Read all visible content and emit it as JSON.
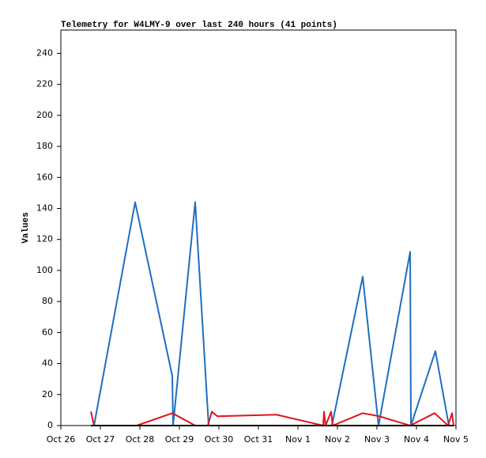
{
  "chart_data": {
    "type": "line",
    "title": "Telemetry for W4LMY-9 over last 240 hours (41 points)",
    "y_label": "Values",
    "xlim": [
      0,
      10
    ],
    "xticks": [
      {
        "value": 0,
        "label": "Oct 26"
      },
      {
        "value": 1,
        "label": "Oct 27"
      },
      {
        "value": 2,
        "label": "Oct 28"
      },
      {
        "value": 3,
        "label": "Oct 29"
      },
      {
        "value": 4,
        "label": "Oct 30"
      },
      {
        "value": 5,
        "label": "Oct 31"
      },
      {
        "value": 6,
        "label": "Nov 1"
      },
      {
        "value": 7,
        "label": "Nov 2"
      },
      {
        "value": 8,
        "label": "Nov 3"
      },
      {
        "value": 9,
        "label": "Nov 4"
      },
      {
        "value": 10,
        "label": "Nov 5"
      }
    ],
    "ylim": [
      0,
      255
    ],
    "yticks": [
      0,
      20,
      40,
      60,
      80,
      100,
      120,
      140,
      160,
      180,
      200,
      220,
      240
    ],
    "grid": false,
    "series": [
      {
        "color": "#1f6fbf",
        "x": [
          0.84,
          1.88,
          2.82,
          2.84,
          3.4,
          3.74,
          6.86,
          7.64,
          8.04,
          8.84,
          8.86,
          9.48,
          9.82
        ],
        "values": [
          0,
          144,
          32,
          0,
          144,
          0,
          0,
          96,
          0,
          112,
          0,
          48,
          0
        ]
      },
      {
        "color": "#e0141e",
        "x": [
          0.76,
          0.84,
          1.92,
          2.82,
          3.4,
          3.72,
          3.82,
          3.96,
          5.46,
          6.64,
          6.66,
          6.7,
          6.84,
          6.88,
          7.64,
          8.06,
          8.84,
          9.46,
          9.8,
          9.9,
          9.94
        ],
        "values": [
          9,
          0,
          0,
          8,
          0,
          0,
          9,
          6,
          7,
          0,
          9,
          0,
          9,
          0,
          8,
          6,
          0,
          8,
          0,
          8,
          0
        ]
      },
      {
        "color": "#000000",
        "x": [
          0.76,
          9.94
        ],
        "values": [
          0,
          0
        ]
      }
    ]
  }
}
